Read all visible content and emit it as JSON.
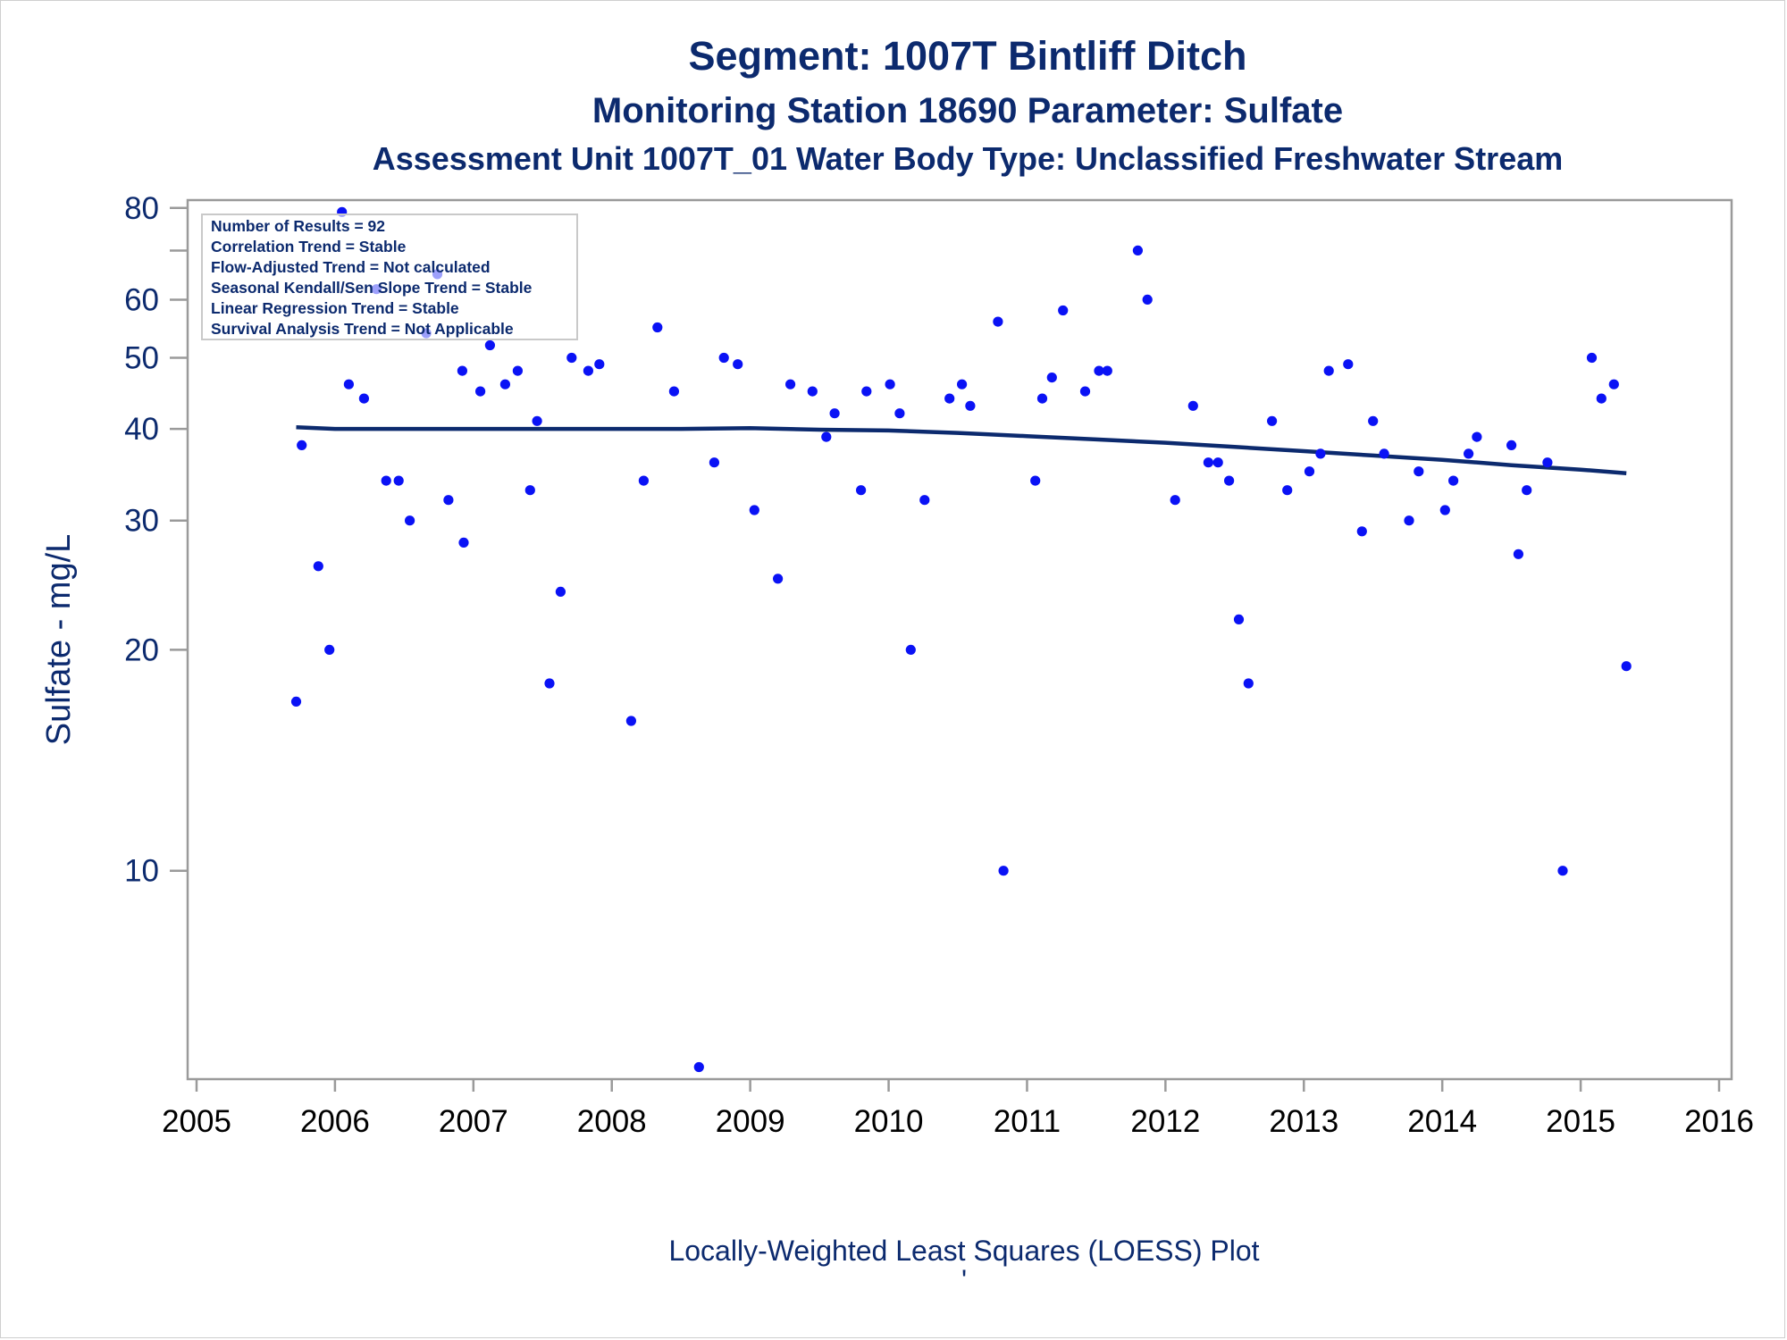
{
  "titles": {
    "line1": "Segment: 1007T  Bintliff Ditch",
    "line2": "Monitoring Station 18690 Parameter: Sulfate",
    "line3": "Assessment Unit 1007T_01   Water Body Type: Unclassified Freshwater Stream"
  },
  "stats_box": {
    "lines": [
      "Number of Results = 92",
      "Correlation Trend = Stable",
      "Flow-Adjusted Trend = Not calculated",
      "Seasonal Kendall/Sen Slope Trend = Stable",
      "Linear Regression Trend = Stable",
      "Survival Analysis Trend = Not Applicable"
    ]
  },
  "footnote": "Locally-Weighted Least Squares (LOESS) Plot",
  "footnote_mark": "'",
  "colors": {
    "text": "#0c2a6e",
    "points": "#0a12f5",
    "loess_line": "#0c2a6e",
    "plot_border": "#9a9a9a"
  },
  "chart_data": {
    "type": "scatter",
    "ylabel": "Sulfate - mg/L",
    "xlabel": "",
    "y_scale": "log",
    "xlim": [
      2005,
      2016
    ],
    "ylim": [
      5.2,
      82
    ],
    "x_ticks": [
      2005,
      2006,
      2007,
      2008,
      2009,
      2010,
      2011,
      2012,
      2013,
      2014,
      2015,
      2016
    ],
    "y_ticks_labeled": [
      10,
      20,
      30,
      40,
      50,
      60,
      80
    ],
    "y_ticks_minor": [
      70
    ],
    "grid": false,
    "legend": "none",
    "points": [
      {
        "x": 2005.72,
        "y": 17
      },
      {
        "x": 2005.76,
        "y": 38
      },
      {
        "x": 2005.88,
        "y": 26
      },
      {
        "x": 2005.96,
        "y": 20
      },
      {
        "x": 2006.05,
        "y": 79
      },
      {
        "x": 2006.1,
        "y": 46
      },
      {
        "x": 2006.21,
        "y": 44
      },
      {
        "x": 2006.3,
        "y": 62
      },
      {
        "x": 2006.37,
        "y": 34
      },
      {
        "x": 2006.46,
        "y": 34
      },
      {
        "x": 2006.54,
        "y": 30
      },
      {
        "x": 2006.66,
        "y": 54
      },
      {
        "x": 2006.74,
        "y": 65
      },
      {
        "x": 2006.82,
        "y": 32
      },
      {
        "x": 2006.92,
        "y": 48
      },
      {
        "x": 2006.93,
        "y": 28
      },
      {
        "x": 2007.05,
        "y": 45
      },
      {
        "x": 2007.12,
        "y": 52
      },
      {
        "x": 2007.23,
        "y": 46
      },
      {
        "x": 2007.32,
        "y": 48
      },
      {
        "x": 2007.41,
        "y": 33
      },
      {
        "x": 2007.46,
        "y": 41
      },
      {
        "x": 2007.55,
        "y": 18
      },
      {
        "x": 2007.63,
        "y": 24
      },
      {
        "x": 2007.71,
        "y": 50
      },
      {
        "x": 2007.83,
        "y": 48
      },
      {
        "x": 2007.91,
        "y": 49
      },
      {
        "x": 2008.14,
        "y": 16
      },
      {
        "x": 2008.23,
        "y": 34
      },
      {
        "x": 2008.33,
        "y": 55
      },
      {
        "x": 2008.45,
        "y": 45
      },
      {
        "x": 2008.63,
        "y": 5.4
      },
      {
        "x": 2008.74,
        "y": 36
      },
      {
        "x": 2008.81,
        "y": 50
      },
      {
        "x": 2008.91,
        "y": 49
      },
      {
        "x": 2009.03,
        "y": 31
      },
      {
        "x": 2009.2,
        "y": 25
      },
      {
        "x": 2009.29,
        "y": 46
      },
      {
        "x": 2009.45,
        "y": 45
      },
      {
        "x": 2009.55,
        "y": 39
      },
      {
        "x": 2009.61,
        "y": 42
      },
      {
        "x": 2009.8,
        "y": 33
      },
      {
        "x": 2009.84,
        "y": 45
      },
      {
        "x": 2010.01,
        "y": 46
      },
      {
        "x": 2010.08,
        "y": 42
      },
      {
        "x": 2010.16,
        "y": 20
      },
      {
        "x": 2010.26,
        "y": 32
      },
      {
        "x": 2010.44,
        "y": 44
      },
      {
        "x": 2010.53,
        "y": 46
      },
      {
        "x": 2010.59,
        "y": 43
      },
      {
        "x": 2010.79,
        "y": 56
      },
      {
        "x": 2010.83,
        "y": 10
      },
      {
        "x": 2011.06,
        "y": 34
      },
      {
        "x": 2011.11,
        "y": 44
      },
      {
        "x": 2011.18,
        "y": 47
      },
      {
        "x": 2011.26,
        "y": 58
      },
      {
        "x": 2011.42,
        "y": 45
      },
      {
        "x": 2011.52,
        "y": 48
      },
      {
        "x": 2011.58,
        "y": 48
      },
      {
        "x": 2011.8,
        "y": 70
      },
      {
        "x": 2011.87,
        "y": 60
      },
      {
        "x": 2012.07,
        "y": 32
      },
      {
        "x": 2012.2,
        "y": 43
      },
      {
        "x": 2012.31,
        "y": 36
      },
      {
        "x": 2012.38,
        "y": 36
      },
      {
        "x": 2012.46,
        "y": 34
      },
      {
        "x": 2012.53,
        "y": 22
      },
      {
        "x": 2012.6,
        "y": 18
      },
      {
        "x": 2012.77,
        "y": 41
      },
      {
        "x": 2012.88,
        "y": 33
      },
      {
        "x": 2013.04,
        "y": 35
      },
      {
        "x": 2013.12,
        "y": 37
      },
      {
        "x": 2013.18,
        "y": 48
      },
      {
        "x": 2013.32,
        "y": 49
      },
      {
        "x": 2013.42,
        "y": 29
      },
      {
        "x": 2013.5,
        "y": 41
      },
      {
        "x": 2013.58,
        "y": 37
      },
      {
        "x": 2013.76,
        "y": 30
      },
      {
        "x": 2013.83,
        "y": 35
      },
      {
        "x": 2014.02,
        "y": 31
      },
      {
        "x": 2014.08,
        "y": 34
      },
      {
        "x": 2014.19,
        "y": 37
      },
      {
        "x": 2014.25,
        "y": 39
      },
      {
        "x": 2014.5,
        "y": 38
      },
      {
        "x": 2014.55,
        "y": 27
      },
      {
        "x": 2014.61,
        "y": 33
      },
      {
        "x": 2014.76,
        "y": 36
      },
      {
        "x": 2014.87,
        "y": 10
      },
      {
        "x": 2015.08,
        "y": 50
      },
      {
        "x": 2015.15,
        "y": 44
      },
      {
        "x": 2015.24,
        "y": 46
      },
      {
        "x": 2015.33,
        "y": 19
      }
    ],
    "loess_line": {
      "x": [
        2005.72,
        2006.0,
        2006.5,
        2007.0,
        2007.5,
        2008.0,
        2008.5,
        2009.0,
        2009.5,
        2010.0,
        2010.5,
        2011.0,
        2011.5,
        2012.0,
        2012.5,
        2013.0,
        2013.5,
        2014.0,
        2014.5,
        2015.0,
        2015.33
      ],
      "y": [
        40.2,
        40.0,
        40.0,
        40.0,
        40.0,
        40.0,
        40.0,
        40.1,
        39.9,
        39.8,
        39.5,
        39.1,
        38.7,
        38.3,
        37.8,
        37.3,
        36.8,
        36.3,
        35.7,
        35.2,
        34.8
      ]
    }
  }
}
